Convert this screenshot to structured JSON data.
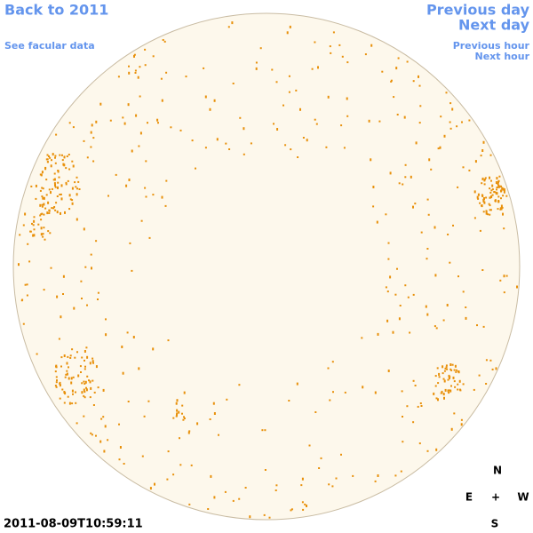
{
  "nav": {
    "back": "Back to 2011",
    "facular": "See facular data",
    "previous_day": "Previous day",
    "next_day": "Next day",
    "previous_hour": "Previous hour",
    "next_hour": "Next hour"
  },
  "timestamp": "2011-08-09T10:59:11",
  "compass": {
    "north": "N",
    "east": "E",
    "center": "+",
    "west": "W",
    "south": "S"
  }
}
